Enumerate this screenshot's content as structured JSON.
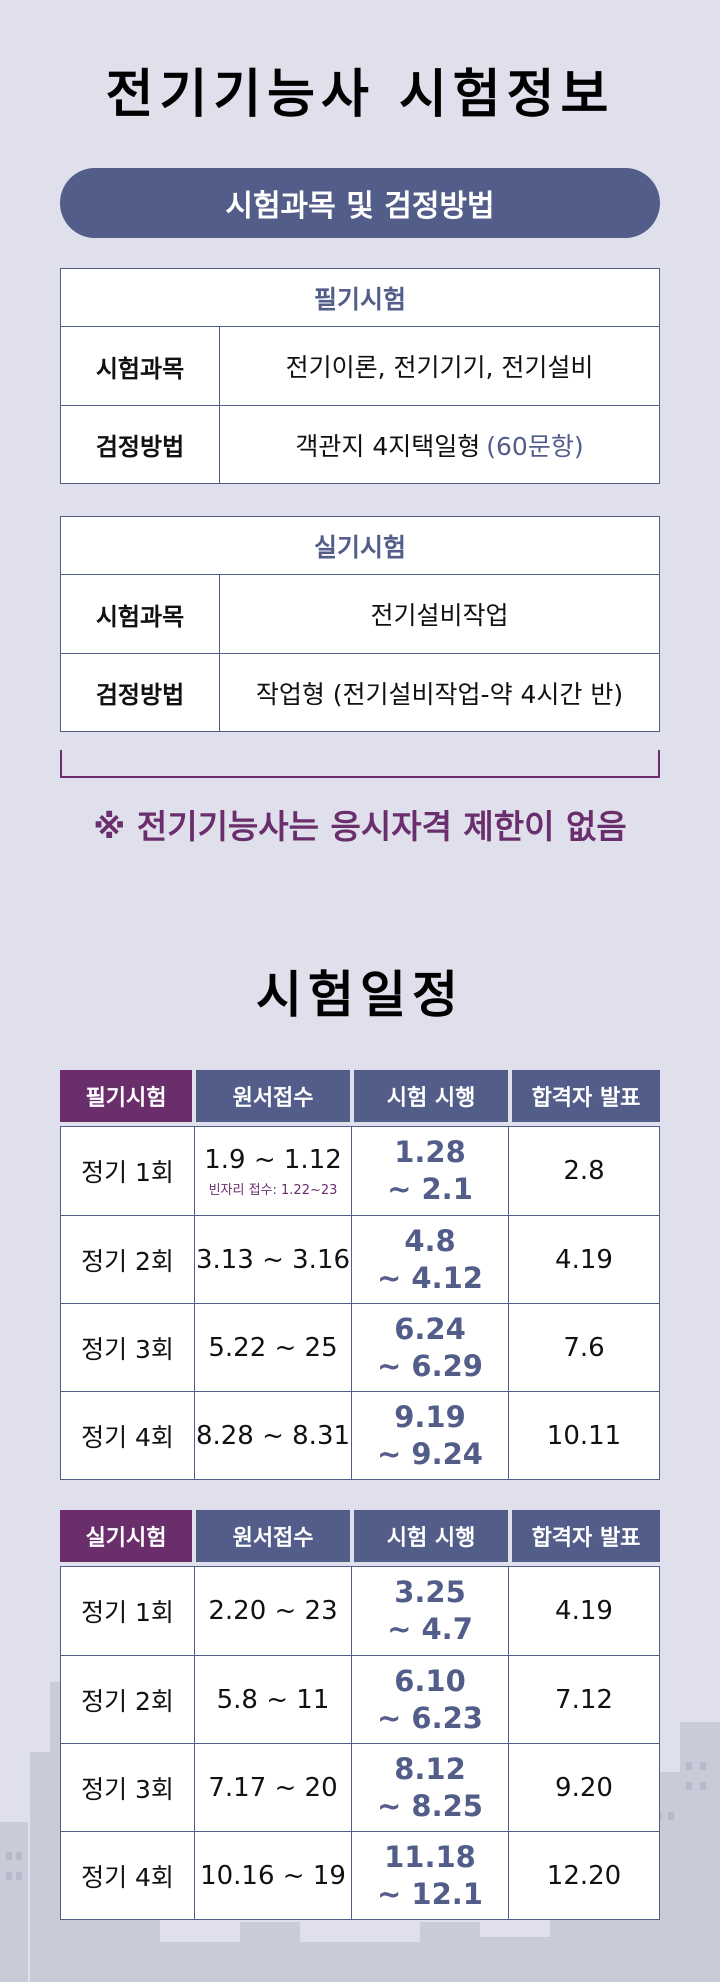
{
  "page": {
    "title": "전기기능사 시험정보",
    "method_section_title": "시험과목 및 검정방법"
  },
  "written": {
    "caption": "필기시험",
    "subject_label": "시험과목",
    "subject_value": "전기이론, 전기기기, 전기설비",
    "method_label": "검정방법",
    "method_value": "객관지 4지택일형",
    "method_note": "(60문항)"
  },
  "practical": {
    "caption": "실기시험",
    "subject_label": "시험과목",
    "subject_value": "전기설비작업",
    "method_label": "검정방법",
    "method_value": "작업형 (전기설비작업-약 4시간 반)"
  },
  "notice": "※ 전기기능사는 응시자격 제한이 없음",
  "schedule": {
    "title": "시험일정",
    "written": {
      "headers": [
        "필기시험",
        "원서접수",
        "시험 시행",
        "합격자 발표"
      ],
      "rows": [
        {
          "round": "정기 1회",
          "apply": "1.9 ~ 1.12",
          "apply_note": "빈자리 접수: 1.22~23",
          "exam_from": "1.28",
          "exam_to": "~ 2.1",
          "result": "2.8"
        },
        {
          "round": "정기 2회",
          "apply": "3.13 ~ 3.16",
          "exam_from": "4.8",
          "exam_to": "~ 4.12",
          "result": "4.19"
        },
        {
          "round": "정기 3회",
          "apply": "5.22 ~ 25",
          "exam_from": "6.24",
          "exam_to": "~ 6.29",
          "result": "7.6"
        },
        {
          "round": "정기 4회",
          "apply": "8.28 ~ 8.31",
          "exam_from": "9.19",
          "exam_to": "~ 9.24",
          "result": "10.11"
        }
      ]
    },
    "practical": {
      "headers": [
        "실기시험",
        "원서접수",
        "시험 시행",
        "합격자 발표"
      ],
      "rows": [
        {
          "round": "정기 1회",
          "apply": "2.20 ~ 23",
          "exam_from": "3.25",
          "exam_to": "~ 4.7",
          "result": "4.19"
        },
        {
          "round": "정기 2회",
          "apply": "5.8 ~ 11",
          "exam_from": "6.10",
          "exam_to": "~ 6.23",
          "result": "7.12"
        },
        {
          "round": "정기 3회",
          "apply": "7.17 ~ 20",
          "exam_from": "8.12",
          "exam_to": "~ 8.25",
          "result": "9.20"
        },
        {
          "round": "정기 4회",
          "apply": "10.16 ~ 19",
          "exam_from": "11.18",
          "exam_to": "~ 12.1",
          "result": "12.20"
        }
      ]
    }
  },
  "colors": {
    "background": "#dfe0ec",
    "primary": "#535d89",
    "accent_purple": "#6b2e6d",
    "skyline": "#c9cbd8"
  },
  "decoration": {
    "background_icon": "city-skyline-icon"
  }
}
